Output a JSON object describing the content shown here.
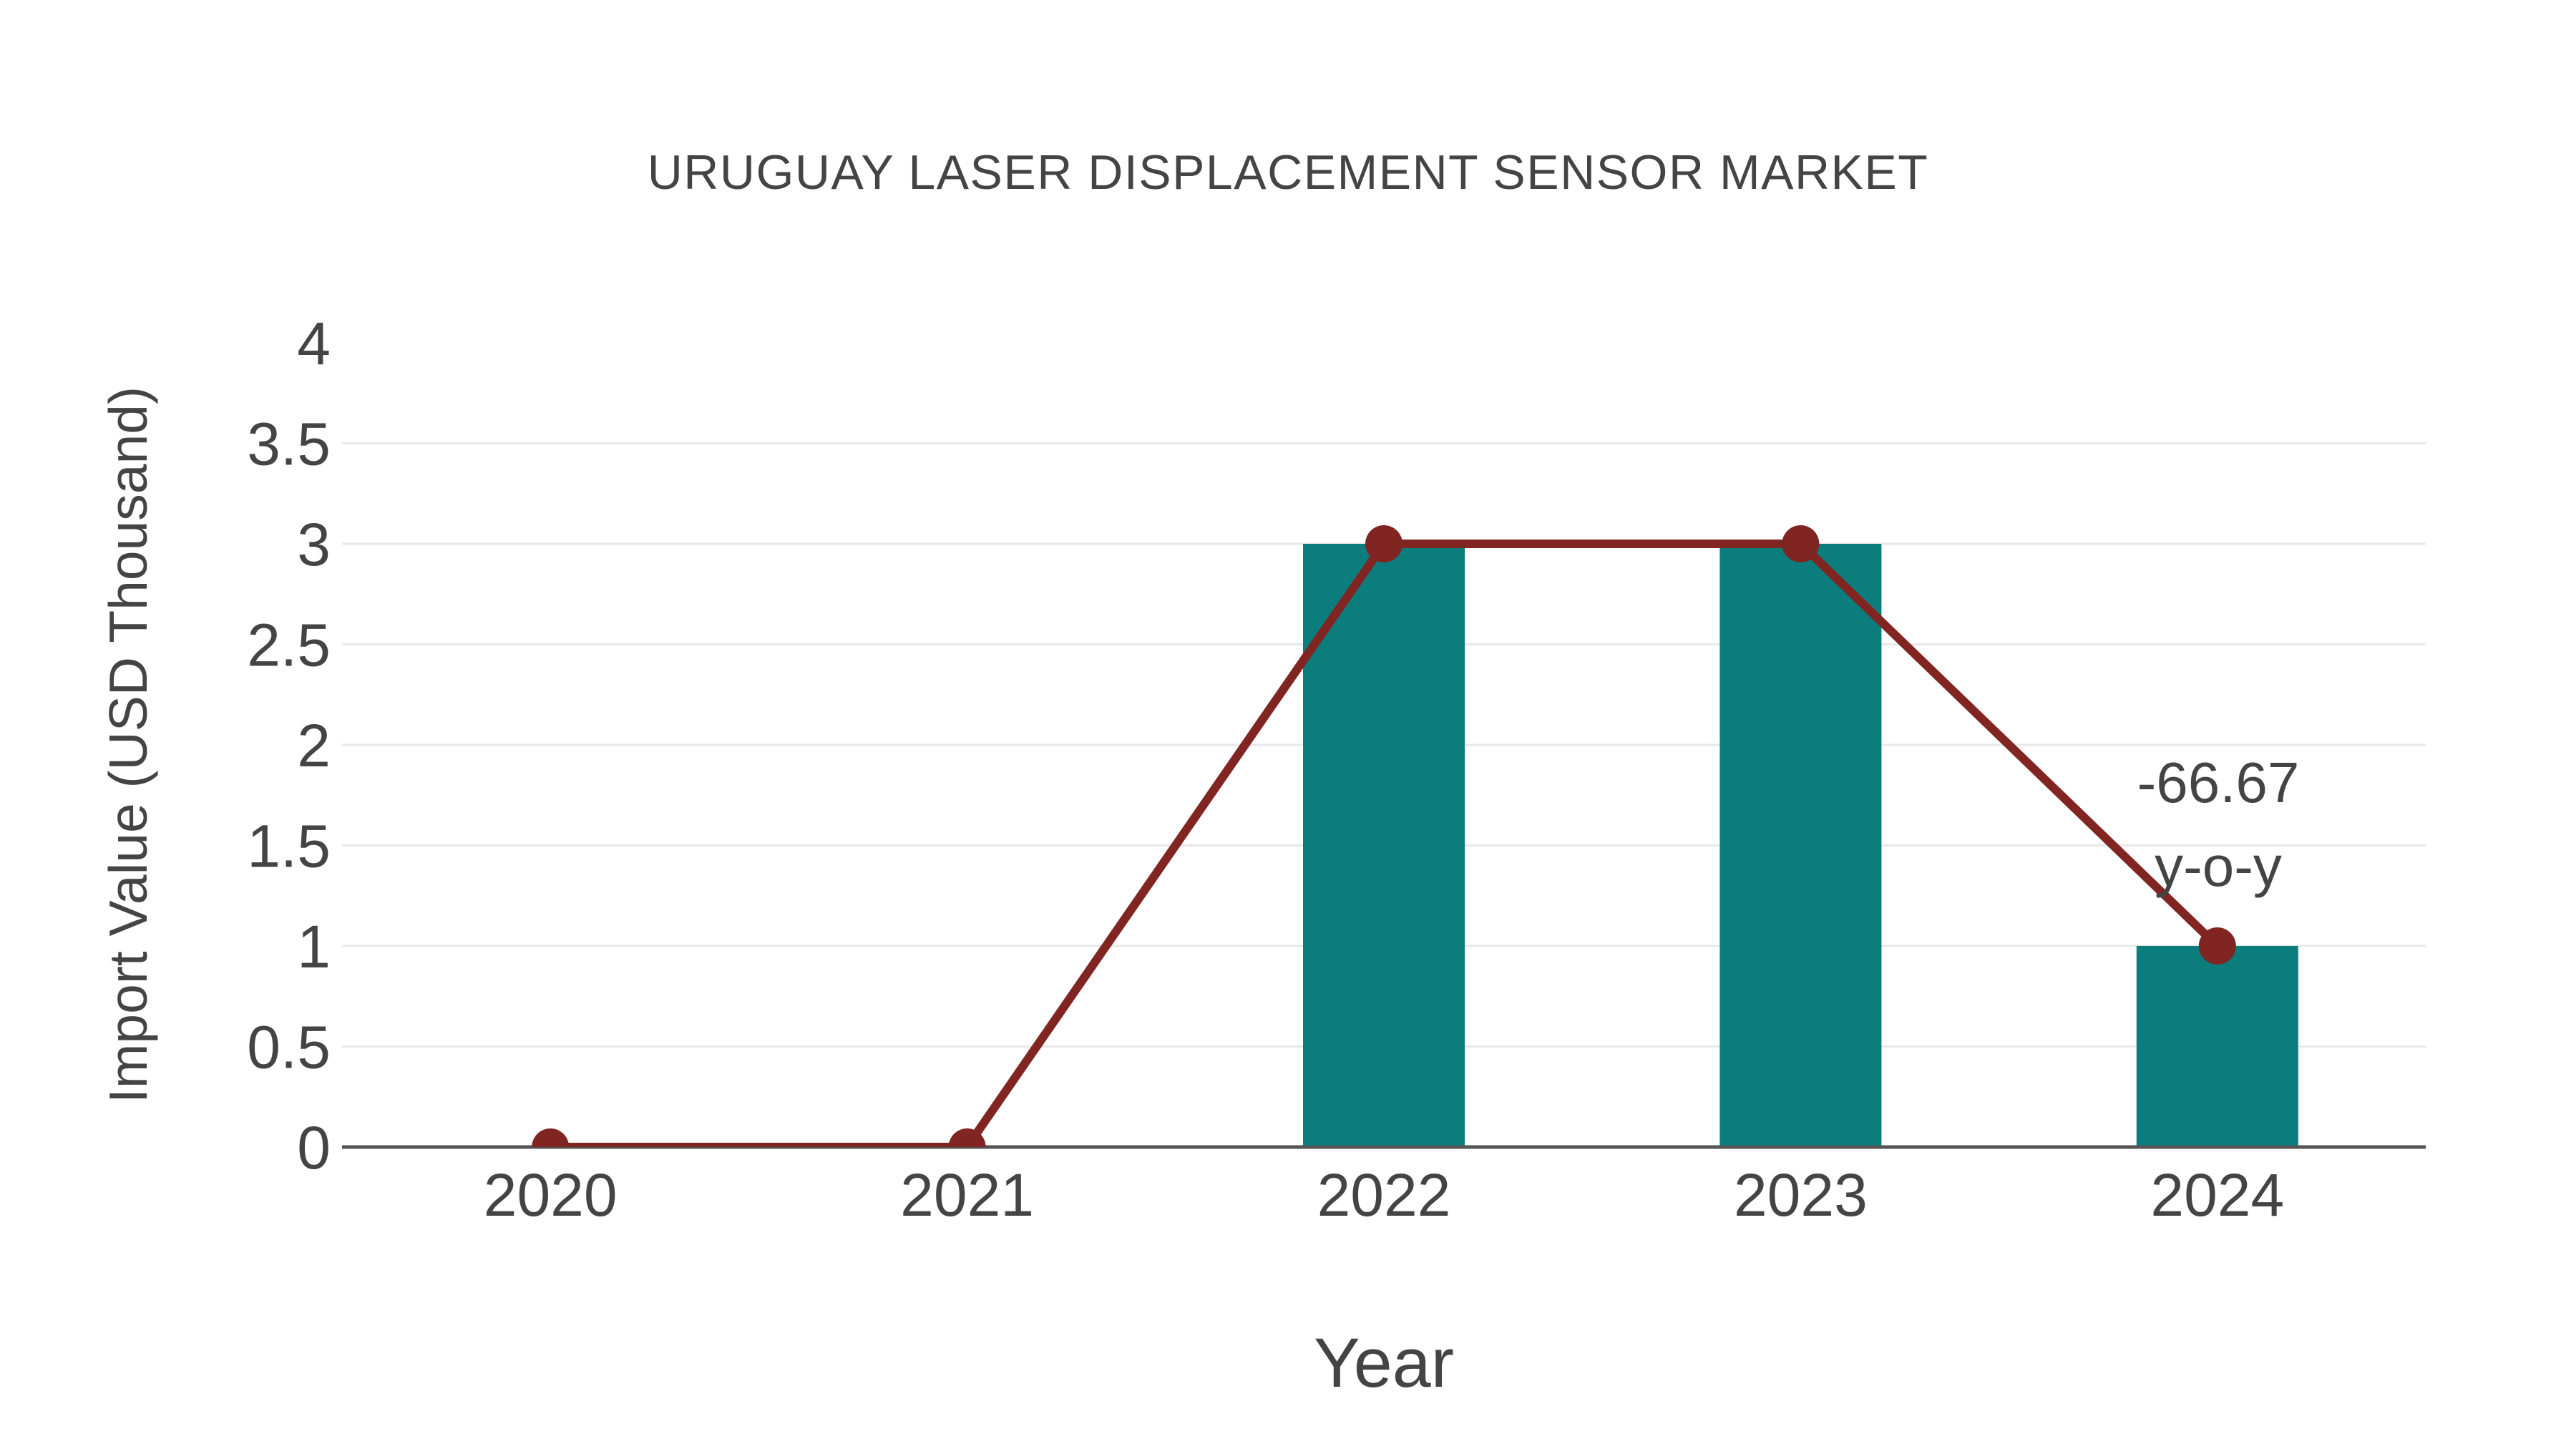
{
  "chart_data": {
    "type": "bar",
    "title": "URUGUAY LASER DISPLACEMENT SENSOR MARKET",
    "xlabel": "Year",
    "ylabel": "Import Value (USD Thousand)",
    "categories": [
      "2020",
      "2021",
      "2022",
      "2023",
      "2024"
    ],
    "series": [
      {
        "type": "bar",
        "values": [
          0,
          0,
          3,
          3,
          1
        ]
      },
      {
        "type": "line",
        "values": [
          0,
          0,
          3,
          3,
          1
        ]
      }
    ],
    "ylim": [
      0,
      4
    ],
    "yticks": [
      0,
      0.5,
      1,
      1.5,
      2,
      2.5,
      3,
      3.5,
      4
    ],
    "ytick_labels": [
      "0",
      "0.5",
      "1",
      "1.5",
      "2",
      "2.5",
      "3",
      "3.5",
      "4"
    ],
    "grid": true,
    "legend": "none",
    "annotation": {
      "lines": [
        "-66.67",
        "y-o-y"
      ]
    }
  },
  "colors": {
    "bar": "#0b7d7d",
    "line": "#802521",
    "grid": "#e8e8e8",
    "axis": "#555555",
    "text": "#444444",
    "background": "#ffffff"
  }
}
